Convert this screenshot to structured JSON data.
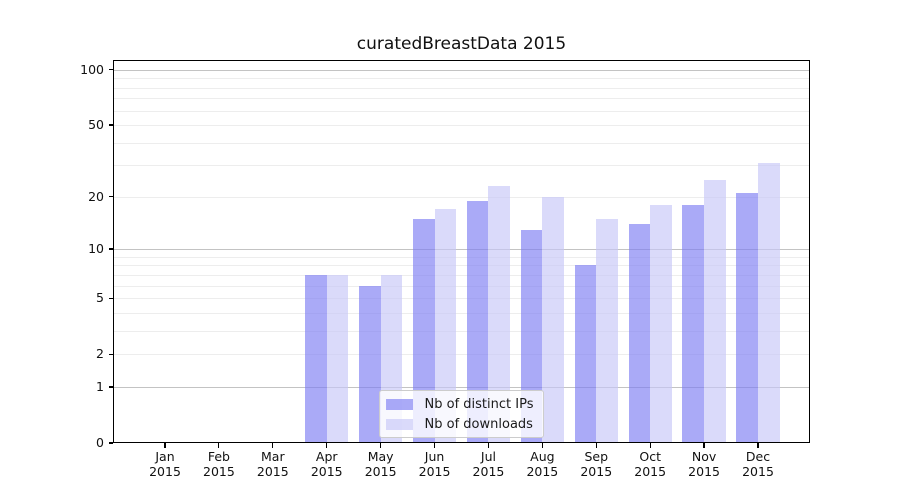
{
  "figure": {
    "title": "curatedBreastData 2015",
    "background": "#ffffff"
  },
  "chart_data": {
    "type": "bar",
    "title": "curatedBreastData 2015",
    "categories": [
      "Jan",
      "Feb",
      "Mar",
      "Apr",
      "May",
      "Jun",
      "Jul",
      "Aug",
      "Sep",
      "Oct",
      "Nov",
      "Dec"
    ],
    "x_tick_year": "2015",
    "series": [
      {
        "name": "Nb of distinct IPs",
        "color": "rgba(125,125,242,0.65)",
        "values": [
          0,
          0,
          0,
          7,
          6,
          15,
          19,
          13,
          8,
          14,
          18,
          21
        ]
      },
      {
        "name": "Nb of downloads",
        "color": "rgba(198,198,248,0.65)",
        "values": [
          0,
          0,
          0,
          7,
          7,
          17,
          23,
          20,
          15,
          18,
          25,
          31
        ]
      }
    ],
    "xlabel": "",
    "ylabel": "",
    "y_scale": "log1p",
    "ylim": [
      0,
      113
    ],
    "y_ticks": [
      0,
      1,
      2,
      5,
      10,
      20,
      50,
      100
    ],
    "y_major_gridlines": [
      1,
      10,
      100
    ],
    "y_minor_gridlines": [
      2,
      3,
      4,
      5,
      6,
      7,
      8,
      9,
      20,
      30,
      40,
      50,
      60,
      70,
      80,
      90
    ],
    "grid": true,
    "legend_position": "lower center",
    "colors": {
      "major_grid": "#c3c3c3",
      "minor_grid": "#ededed",
      "axis": "#000000",
      "text": "#111111",
      "legend_border": "#cccccc",
      "legend_background": "rgba(255,255,255,0.8)"
    }
  }
}
